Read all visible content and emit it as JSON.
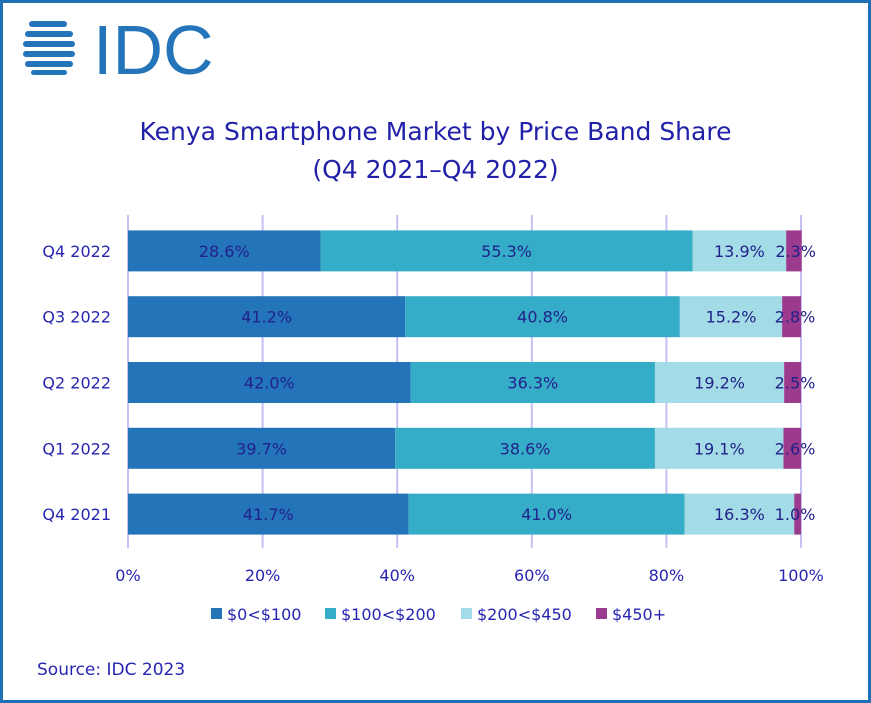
{
  "logo_text": "IDC",
  "chart_data": {
    "type": "bar",
    "orientation": "horizontal",
    "stacked": true,
    "title": "Kenya Smartphone Market by Price Band Share",
    "subtitle": "(Q4 2021–Q4 2022)",
    "categories": [
      "Q4 2022",
      "Q3 2022",
      "Q2 2022",
      "Q1 2022",
      "Q4 2021"
    ],
    "series": [
      {
        "name": "$0<$100",
        "color": "#2474b9",
        "values": [
          28.6,
          41.2,
          42.0,
          39.7,
          41.7
        ]
      },
      {
        "name": "$100<$200",
        "color": "#36adc8",
        "values": [
          55.3,
          40.8,
          36.3,
          38.6,
          41.0
        ]
      },
      {
        "name": "$200<$450",
        "color": "#a3dbe6",
        "values": [
          13.9,
          15.2,
          19.2,
          19.1,
          16.3
        ]
      },
      {
        "name": "$450+",
        "color": "#9c3a8d",
        "values": [
          2.3,
          2.8,
          2.5,
          2.6,
          1.0
        ]
      }
    ],
    "xlim": [
      0,
      100
    ],
    "xticks": [
      "0%",
      "20%",
      "40%",
      "60%",
      "80%",
      "100%"
    ],
    "grid": true,
    "legend": "bottom",
    "source": "Source: IDC 2023"
  }
}
